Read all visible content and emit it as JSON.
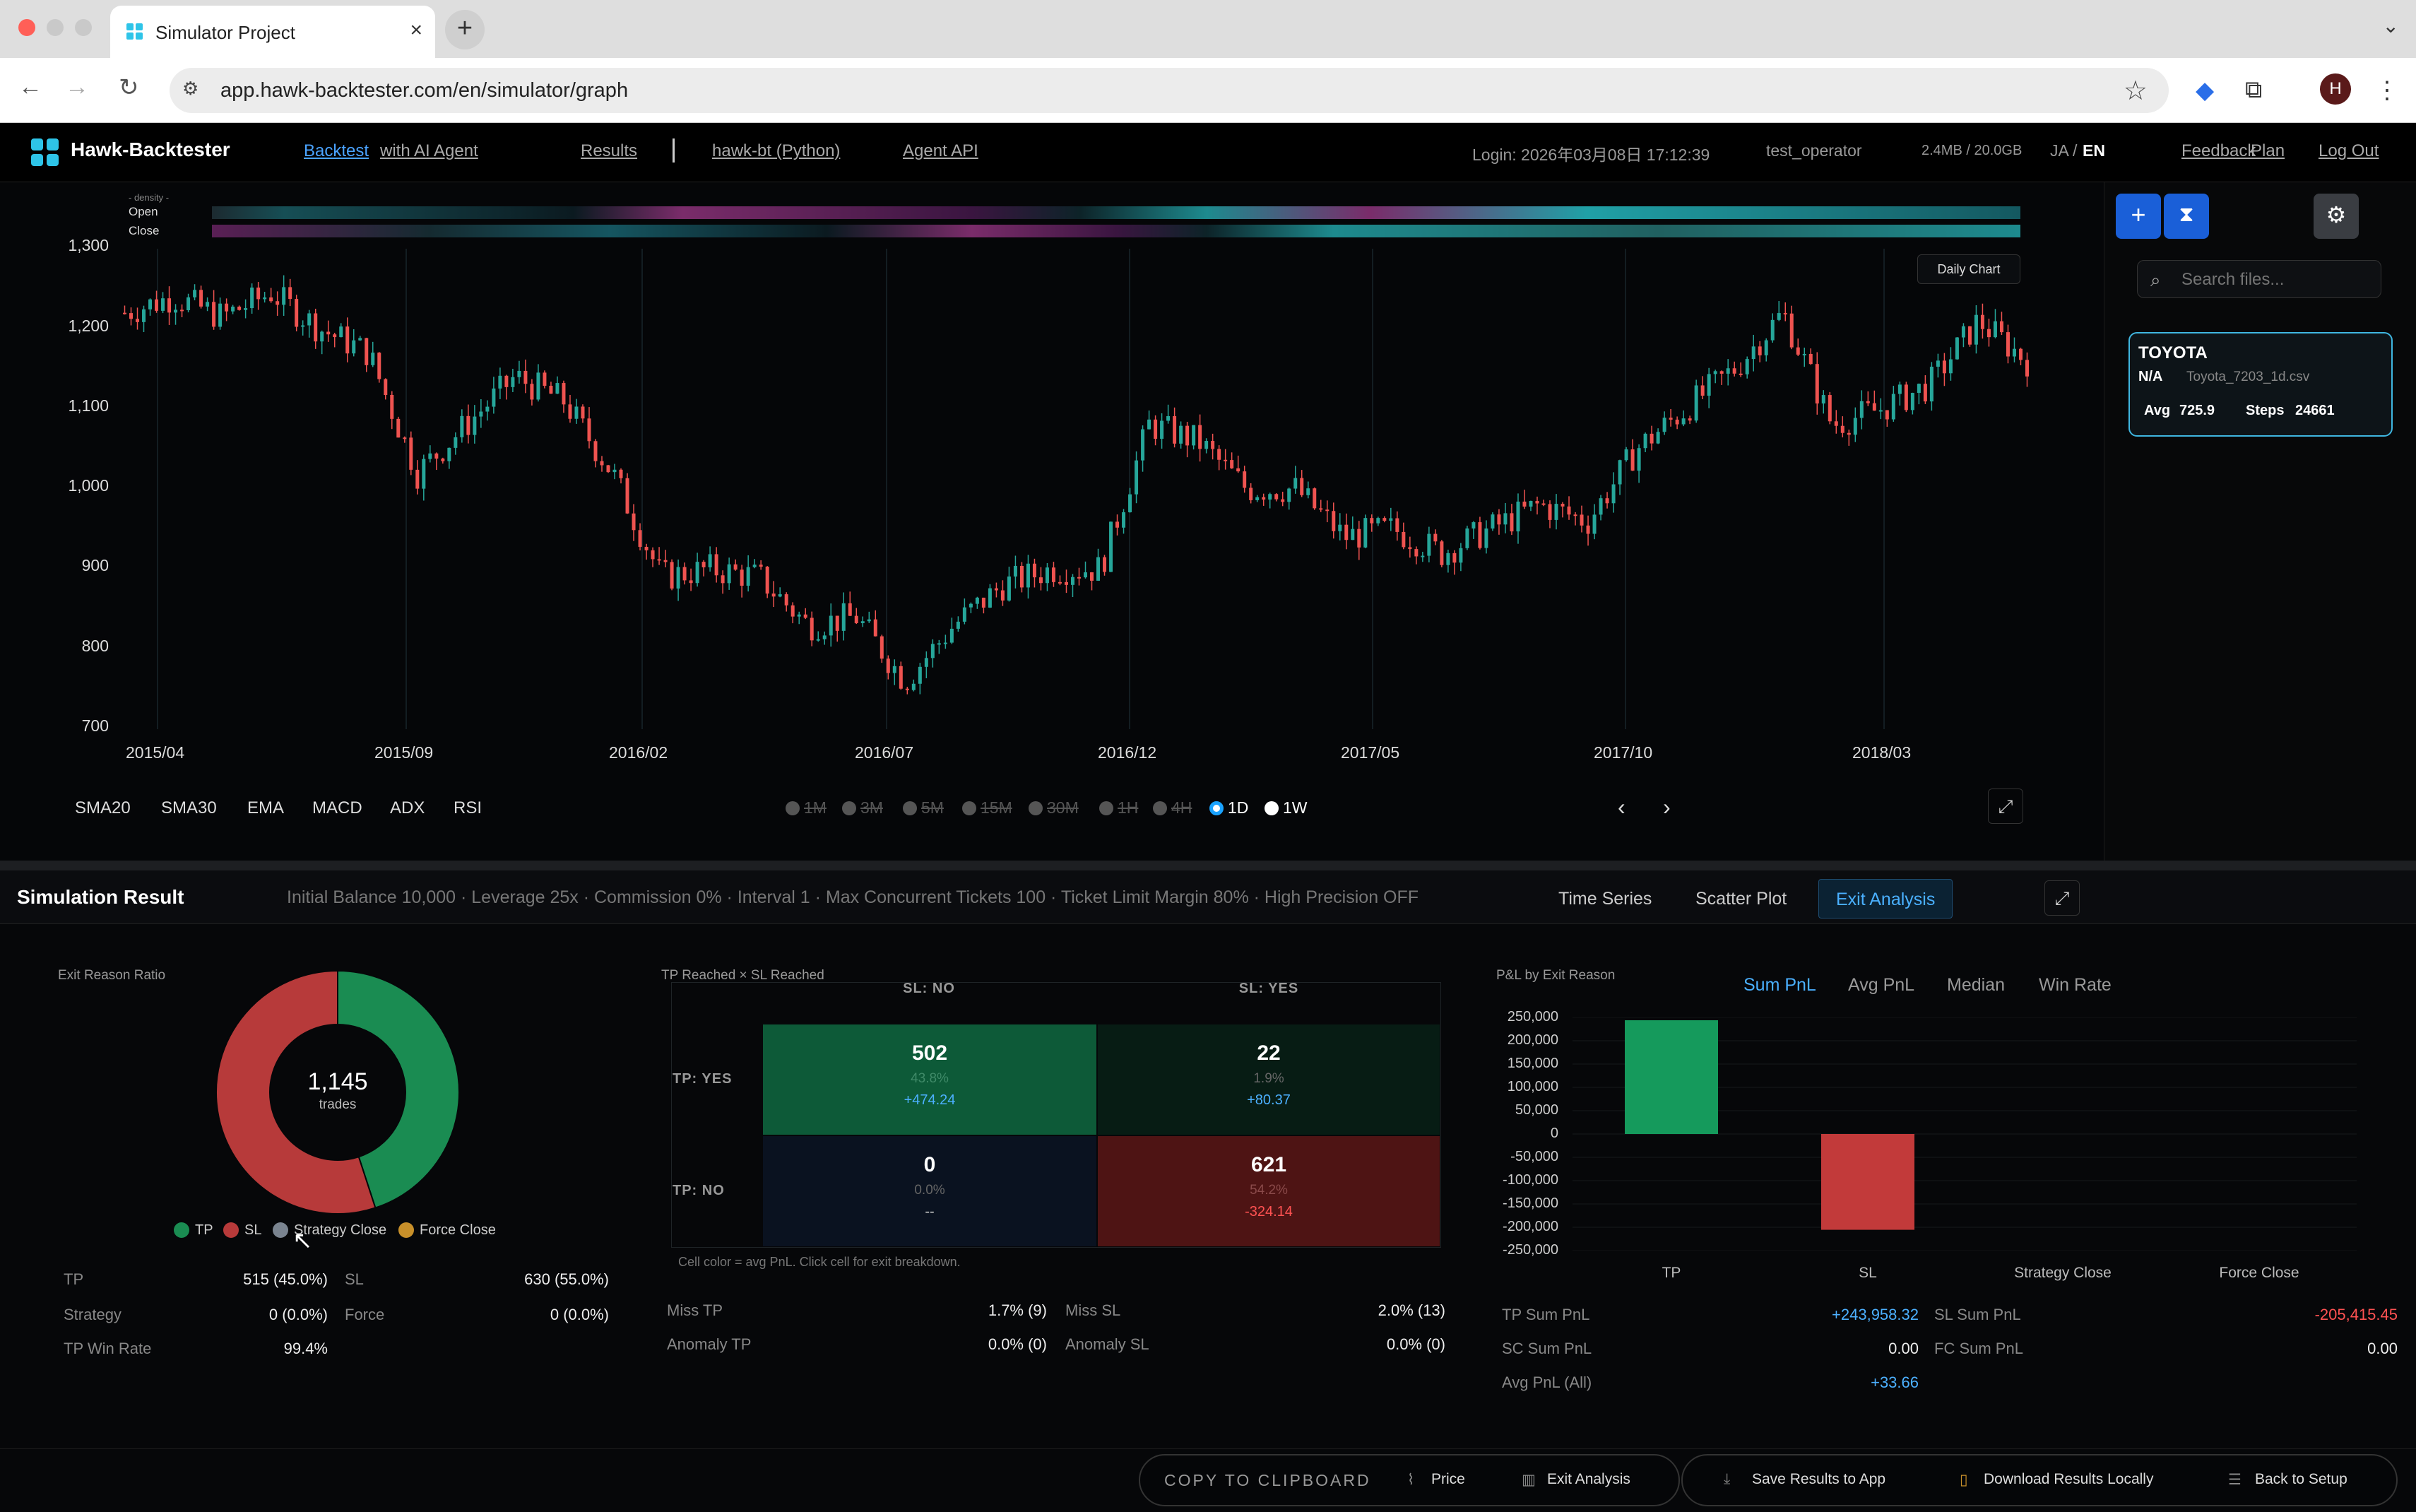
{
  "browser": {
    "tab_title": "Simulator Project",
    "url": "app.hawk-backtester.com/en/simulator/graph",
    "profile_initial": "H"
  },
  "nav": {
    "brand": "Hawk-Backtester",
    "links": [
      "Backtest",
      "with AI Agent",
      "Results",
      "hawk-bt (Python)",
      "Agent API"
    ],
    "separator": "|",
    "login": "Login: 2026年03月08日 17:12:39",
    "user": "test_operator",
    "storage": "2.4MB / 20.0GB",
    "lang_ja": "JA",
    "lang_sep": "/",
    "lang_en": "EN",
    "feedback": "Feedback",
    "plan": "Plan",
    "logout": "Log Out"
  },
  "chart": {
    "density_label": "- density -",
    "open_label": "Open",
    "close_label": "Close",
    "daily_chart_button": "Daily Chart",
    "y_ticks": [
      "1,300",
      "1,200",
      "1,100",
      "1,000",
      "900",
      "800",
      "700"
    ],
    "x_ticks": [
      "2015/04",
      "2015/09",
      "2016/02",
      "2016/07",
      "2016/12",
      "2017/05",
      "2017/10",
      "2018/03"
    ],
    "indicators": [
      "SMA20",
      "SMA30",
      "EMA",
      "MACD",
      "ADX",
      "RSI"
    ],
    "intervals": [
      "1M",
      "3M",
      "5M",
      "15M",
      "30M",
      "1H",
      "4H",
      "1D",
      "1W"
    ],
    "selected_interval": "1D",
    "prev": "‹",
    "next": "›"
  },
  "chart_data": {
    "type": "candlestick",
    "title": "",
    "xlabel": "",
    "ylabel": "",
    "ylim": [
      700,
      1300
    ],
    "x_range": [
      "2015/03",
      "2018/06"
    ],
    "close_path": [
      [
        "2015/03",
        1220
      ],
      [
        "2015/04",
        1240
      ],
      [
        "2015/05",
        1215
      ],
      [
        "2015/06",
        1245
      ],
      [
        "2015/07",
        1200
      ],
      [
        "2015/08",
        1170
      ],
      [
        "2015/09",
        1020
      ],
      [
        "2015/10",
        1080
      ],
      [
        "2015/11",
        1140
      ],
      [
        "2015/12",
        1110
      ],
      [
        "2016/01",
        1020
      ],
      [
        "2016/02",
        890
      ],
      [
        "2016/03",
        900
      ],
      [
        "2016/04",
        890
      ],
      [
        "2016/05",
        830
      ],
      [
        "2016/06",
        840
      ],
      [
        "2016/07",
        760
      ],
      [
        "2016/08",
        830
      ],
      [
        "2016/09",
        880
      ],
      [
        "2016/10",
        900
      ],
      [
        "2016/11",
        900
      ],
      [
        "2016/12",
        1080
      ],
      [
        "2017/01",
        1060
      ],
      [
        "2017/02",
        1000
      ],
      [
        "2017/03",
        1000
      ],
      [
        "2017/04",
        940
      ],
      [
        "2017/05",
        950
      ],
      [
        "2017/06",
        920
      ],
      [
        "2017/07",
        950
      ],
      [
        "2017/08",
        980
      ],
      [
        "2017/09",
        960
      ],
      [
        "2017/10",
        1050
      ],
      [
        "2017/11",
        1100
      ],
      [
        "2017/12",
        1150
      ],
      [
        "2018/01",
        1220
      ],
      [
        "2018/02",
        1080
      ],
      [
        "2018/03",
        1100
      ],
      [
        "2018/04",
        1130
      ],
      [
        "2018/05",
        1210
      ],
      [
        "2018/06",
        1160
      ]
    ],
    "colors": {
      "up": "#26a69a",
      "down": "#ef5350"
    }
  },
  "side": {
    "search_placeholder": "Search files...",
    "card": {
      "name": "TOYOTA",
      "na": "N/A",
      "file": "Toyota_7203_1d.csv",
      "avg_label": "Avg",
      "avg_value": "725.9",
      "steps_label": "Steps",
      "steps_value": "24661"
    }
  },
  "results": {
    "title": "Simulation Result",
    "params": "Initial Balance 10,000 · Leverage 25x · Commission 0% · Interval 1 · Max Concurrent Tickets 100 · Ticket Limit Margin 80% · High Precision OFF",
    "tabs": [
      "Time Series",
      "Scatter Plot",
      "Exit Analysis"
    ],
    "active_tab": "Exit Analysis",
    "ratio": {
      "title": "Exit Reason Ratio",
      "total": "1,145",
      "total_label": "trades",
      "slices": [
        {
          "name": "TP",
          "value": 515,
          "color": "#1a8c52"
        },
        {
          "name": "SL",
          "value": 630,
          "color": "#b73a3a"
        },
        {
          "name": "Strategy Close",
          "value": 0,
          "color": "#7a8490"
        },
        {
          "name": "Force Close",
          "value": 0,
          "color": "#c8902a"
        }
      ],
      "stats": {
        "tp_label": "TP",
        "tp_value": "515 (45.0%)",
        "sl_label": "SL",
        "sl_value": "630 (55.0%)",
        "strategy_label": "Strategy",
        "strategy_value": "0 (0.0%)",
        "force_label": "Force",
        "force_value": "0 (0.0%)",
        "tpwin_label": "TP Win Rate",
        "tpwin_value": "99.4%"
      }
    },
    "matrix": {
      "title": "TP Reached × SL Reached",
      "col_no": "SL: NO",
      "col_yes": "SL: YES",
      "row_yes": "TP: YES",
      "row_no": "TP: NO",
      "cells": {
        "yes_no": {
          "n": "502",
          "p": "43.8%",
          "v": "+474.24"
        },
        "yes_yes": {
          "n": "22",
          "p": "1.9%",
          "v": "+80.37"
        },
        "no_no": {
          "n": "0",
          "p": "0.0%",
          "v": "--"
        },
        "no_yes": {
          "n": "621",
          "p": "54.2%",
          "v": "-324.14"
        }
      },
      "note": "Cell color = avg PnL. Click cell for exit breakdown.",
      "miss_tp_label": "Miss TP",
      "miss_tp_value": "1.7% (9)",
      "miss_sl_label": "Miss SL",
      "miss_sl_value": "2.0% (13)",
      "anom_tp_label": "Anomaly TP",
      "anom_tp_value": "0.0% (0)",
      "anom_sl_label": "Anomaly SL",
      "anom_sl_value": "0.0% (0)"
    },
    "pnl": {
      "title": "P&L by Exit Reason",
      "tabs": [
        "Sum PnL",
        "Avg PnL",
        "Median",
        "Win Rate"
      ],
      "active": "Sum PnL",
      "y_ticks": [
        "250,000",
        "200,000",
        "150,000",
        "100,000",
        "50,000",
        "0",
        "-50,000",
        "-100,000",
        "-150,000",
        "-200,000",
        "-250,000"
      ],
      "categories": [
        "TP",
        "SL",
        "Strategy Close",
        "Force Close"
      ],
      "values": [
        243958.32,
        -205415.45,
        0,
        0
      ],
      "stats": {
        "tp_sum_label": "TP Sum PnL",
        "tp_sum_value": "+243,958.32",
        "sl_sum_label": "SL Sum PnL",
        "sl_sum_value": "-205,415.45",
        "sc_sum_label": "SC Sum PnL",
        "sc_sum_value": "0.00",
        "fc_sum_label": "FC Sum PnL",
        "fc_sum_value": "0.00",
        "avg_label": "Avg PnL (All)",
        "avg_value": "+33.66"
      }
    }
  },
  "footer": {
    "copy": "COPY TO CLIPBOARD",
    "price": "Price",
    "exit": "Exit Analysis",
    "save": "Save Results to App",
    "download": "Download Results Locally",
    "back": "Back to Setup"
  }
}
